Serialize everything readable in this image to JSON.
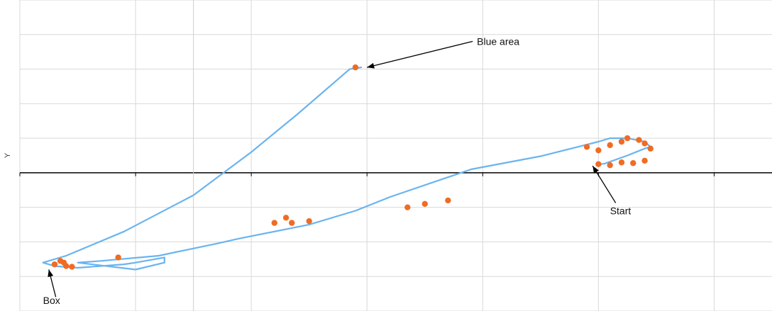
{
  "chart_data": {
    "type": "scatter",
    "xlabel": "",
    "ylabel": "Y",
    "xlim": [
      -1.5,
      5
    ],
    "ylim": [
      -4,
      5
    ],
    "grid": true,
    "colors": {
      "line": "#6ab4ef",
      "marker": "#ef6c24",
      "axis": "#000000",
      "grid": "#d9d9d9"
    },
    "series": [
      {
        "values_kind": "trajectory",
        "x": [
          3.5,
          3.55,
          3.75,
          3.9,
          3.95,
          3.9,
          3.75,
          3.6,
          3.5,
          3.38,
          3.0,
          2.4,
          1.7,
          1.4,
          1.0,
          0.4,
          0.2,
          -0.3,
          -0.8,
          -1.0,
          -0.5,
          -0.25,
          -0.25,
          -0.5,
          -0.6,
          -1.0,
          -1.2,
          -1.3,
          -1.1,
          -0.6,
          0.0,
          0.5,
          0.9,
          1.35,
          1.45
        ],
        "y": [
          0.25,
          0.26,
          0.5,
          0.7,
          0.75,
          0.9,
          1.0,
          1.0,
          0.9,
          0.8,
          0.48,
          0.1,
          -0.7,
          -1.1,
          -1.5,
          -1.9,
          -2.05,
          -2.4,
          -2.55,
          -2.6,
          -2.8,
          -2.6,
          -2.45,
          -2.6,
          -2.65,
          -2.75,
          -2.7,
          -2.6,
          -2.4,
          -1.7,
          -0.65,
          0.6,
          1.7,
          3.0,
          3.05
        ]
      }
    ],
    "markers": {
      "x": [
        3.5,
        3.6,
        3.7,
        3.8,
        3.9,
        3.6,
        3.7,
        3.75,
        3.85,
        3.9,
        3.95,
        3.4,
        3.5,
        2.2,
        2.0,
        1.85,
        1.0,
        0.85,
        0.8,
        0.7,
        -0.65,
        -1.1,
        -1.2,
        -1.15,
        -1.05,
        -1.12,
        1.4
      ],
      "y": [
        0.25,
        0.22,
        0.3,
        0.28,
        0.35,
        0.8,
        0.9,
        1.0,
        0.95,
        0.85,
        0.7,
        0.75,
        0.65,
        -0.8,
        -0.9,
        -1.0,
        -1.4,
        -1.45,
        -1.3,
        -1.45,
        -2.45,
        -2.7,
        -2.65,
        -2.55,
        -2.72,
        -2.6,
        3.05
      ]
    },
    "annotations": [
      {
        "text": "Blue area",
        "x": 2.45,
        "y": 3.7,
        "arrow_to": [
          1.5,
          3.05
        ]
      },
      {
        "text": "Start",
        "x": 3.6,
        "y": -1.2,
        "arrow_to": [
          3.45,
          0.2
        ]
      },
      {
        "text": "Box",
        "x": -1.3,
        "y": -3.8,
        "arrow_to": [
          -1.25,
          -2.8
        ]
      }
    ]
  }
}
